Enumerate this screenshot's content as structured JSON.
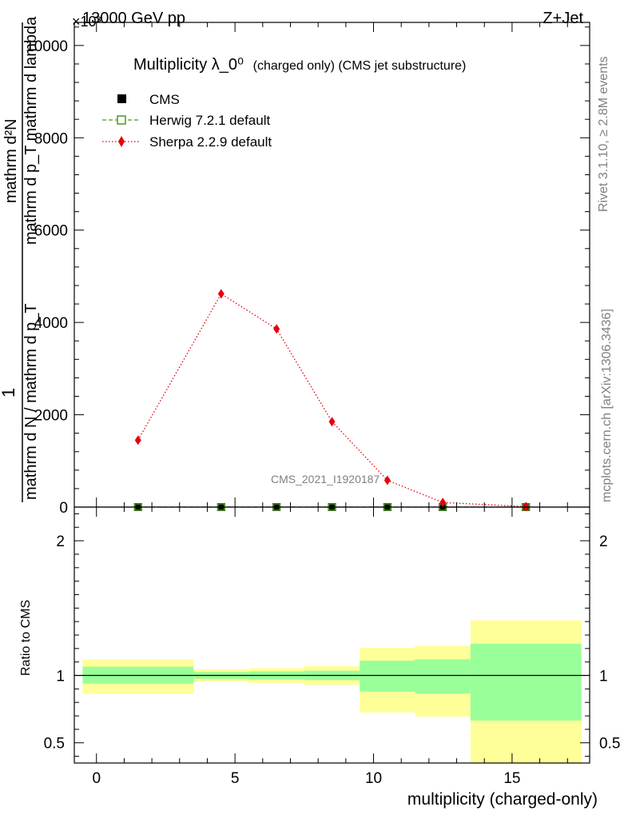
{
  "header": {
    "left": "13000 GeV pp",
    "right": "Z+Jet",
    "exponent": "×10³"
  },
  "side_labels": {
    "rivet": "Rivet 3.1.10, ≥ 2.8M events",
    "mcplots": "mcplots.cern.ch [arXiv:1306.3436]"
  },
  "watermark": "CMS_2021_I1920187",
  "colors": {
    "cms": "#000000",
    "herwig": "#4a9a1a",
    "sherpa": "#e8000b",
    "band_inner": "#99ff99",
    "band_outer": "#ffff99"
  },
  "chart_data": [
    {
      "type": "line",
      "title": "Multiplicity λ_0⁰",
      "title_suffix": "(charged only) (CMS jet substructure)",
      "ylabel_top": "1",
      "ylabel_num": "mathrm d²N",
      "ylabel_den": "mathrm d p_T mathrm d lambda",
      "ylabel_left": "mathrm d N / mathrm d p_T",
      "ylim": [
        0,
        10500
      ],
      "y_ticks": [
        0,
        2000,
        4000,
        6000,
        8000,
        10000
      ],
      "y_tick_labels": [
        "0",
        "2000",
        "4000",
        "6000",
        "8000",
        "10000"
      ],
      "xlim": [
        -0.8,
        17.8
      ],
      "legend_position": "top-left",
      "series": [
        {
          "name": "CMS",
          "marker": "square-filled",
          "x": [
            1.5,
            4.5,
            6.5,
            8.5,
            10.5,
            12.5,
            15.5
          ],
          "y": [
            0,
            0,
            0,
            0,
            0,
            0,
            0
          ]
        },
        {
          "name": "Herwig 7.2.1 default",
          "marker": "square-open",
          "line": "dashed",
          "x": [
            1.5,
            4.5,
            6.5,
            8.5,
            10.5,
            12.5,
            15.5
          ],
          "y": [
            0,
            0,
            0,
            0,
            0,
            0,
            0
          ]
        },
        {
          "name": "Sherpa 2.2.9 default",
          "marker": "diamond",
          "line": "dotted",
          "x": [
            1.5,
            4.5,
            6.5,
            8.5,
            10.5,
            12.5,
            15.5
          ],
          "y": [
            1450,
            4620,
            3860,
            1850,
            580,
            100,
            10
          ]
        }
      ]
    },
    {
      "type": "area",
      "ylabel": "Ratio to CMS",
      "xlabel": "multiplicity (charged-only)",
      "xlim": [
        -0.8,
        17.8
      ],
      "ylim": [
        0.35,
        2.25
      ],
      "x_ticks": [
        0,
        5,
        10,
        15
      ],
      "x_tick_labels": [
        "0",
        "5",
        "10",
        "15"
      ],
      "y_ticks": [
        0.5,
        1,
        2
      ],
      "y_tick_labels": [
        "0.5",
        "1",
        "2"
      ],
      "reference_line": 1,
      "bins": [
        {
          "x_low": -0.5,
          "x_high": 3.5,
          "inner_low": 0.94,
          "inner_high": 1.065,
          "outer_low": 0.865,
          "outer_high": 1.12
        },
        {
          "x_low": 3.5,
          "x_high": 5.5,
          "inner_low": 0.975,
          "inner_high": 1.025,
          "outer_low": 0.955,
          "outer_high": 1.045
        },
        {
          "x_low": 5.5,
          "x_high": 7.5,
          "inner_low": 0.97,
          "inner_high": 1.03,
          "outer_low": 0.945,
          "outer_high": 1.055
        },
        {
          "x_low": 7.5,
          "x_high": 9.5,
          "inner_low": 0.965,
          "inner_high": 1.035,
          "outer_low": 0.93,
          "outer_high": 1.07
        },
        {
          "x_low": 9.5,
          "x_high": 11.5,
          "inner_low": 0.88,
          "inner_high": 1.11,
          "outer_low": 0.725,
          "outer_high": 1.205
        },
        {
          "x_low": 11.5,
          "x_high": 13.5,
          "inner_low": 0.865,
          "inner_high": 1.12,
          "outer_low": 0.695,
          "outer_high": 1.22
        },
        {
          "x_low": 13.5,
          "x_high": 17.5,
          "inner_low": 0.665,
          "inner_high": 1.235,
          "outer_low": 0.35,
          "outer_high": 1.41
        }
      ]
    }
  ]
}
